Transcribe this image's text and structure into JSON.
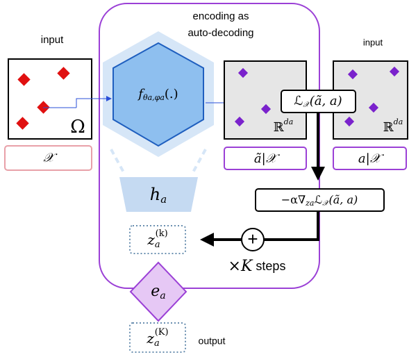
{
  "left_input": {
    "label": "input",
    "symbol": "Ω",
    "set": "𝒳"
  },
  "encoder": {
    "title_line1": "encoding as",
    "title_line2": "auto-decoding",
    "network": {
      "base": "f",
      "sub": "θa,φa",
      "tail": "(.)"
    },
    "head": {
      "base": "h",
      "sub": "a"
    },
    "latent": {
      "base": "z",
      "sub": "a",
      "sup": "(k)"
    },
    "steps": {
      "times": "×",
      "var": "K",
      "word": " steps"
    },
    "embedding": {
      "base": "e",
      "sub": "a"
    }
  },
  "prediction": {
    "space": {
      "base": "ℝ",
      "sup": "da"
    },
    "label": "ã|𝒳"
  },
  "right_input": {
    "label": "input",
    "space": {
      "base": "ℝ",
      "sup": "da"
    },
    "label_set": "a|𝒳"
  },
  "loss": {
    "base": "ℒ",
    "sub": "𝒳",
    "tail": "(ã, a)"
  },
  "gradient": {
    "head": "−α∇",
    "sub1": "za",
    "mid": "ℒ",
    "sub2": "𝒳",
    "tail": "(ã, a)"
  },
  "plus": "+",
  "output": {
    "latent": {
      "base": "z",
      "sub": "a",
      "sup": "(K)"
    },
    "label": "output"
  }
}
